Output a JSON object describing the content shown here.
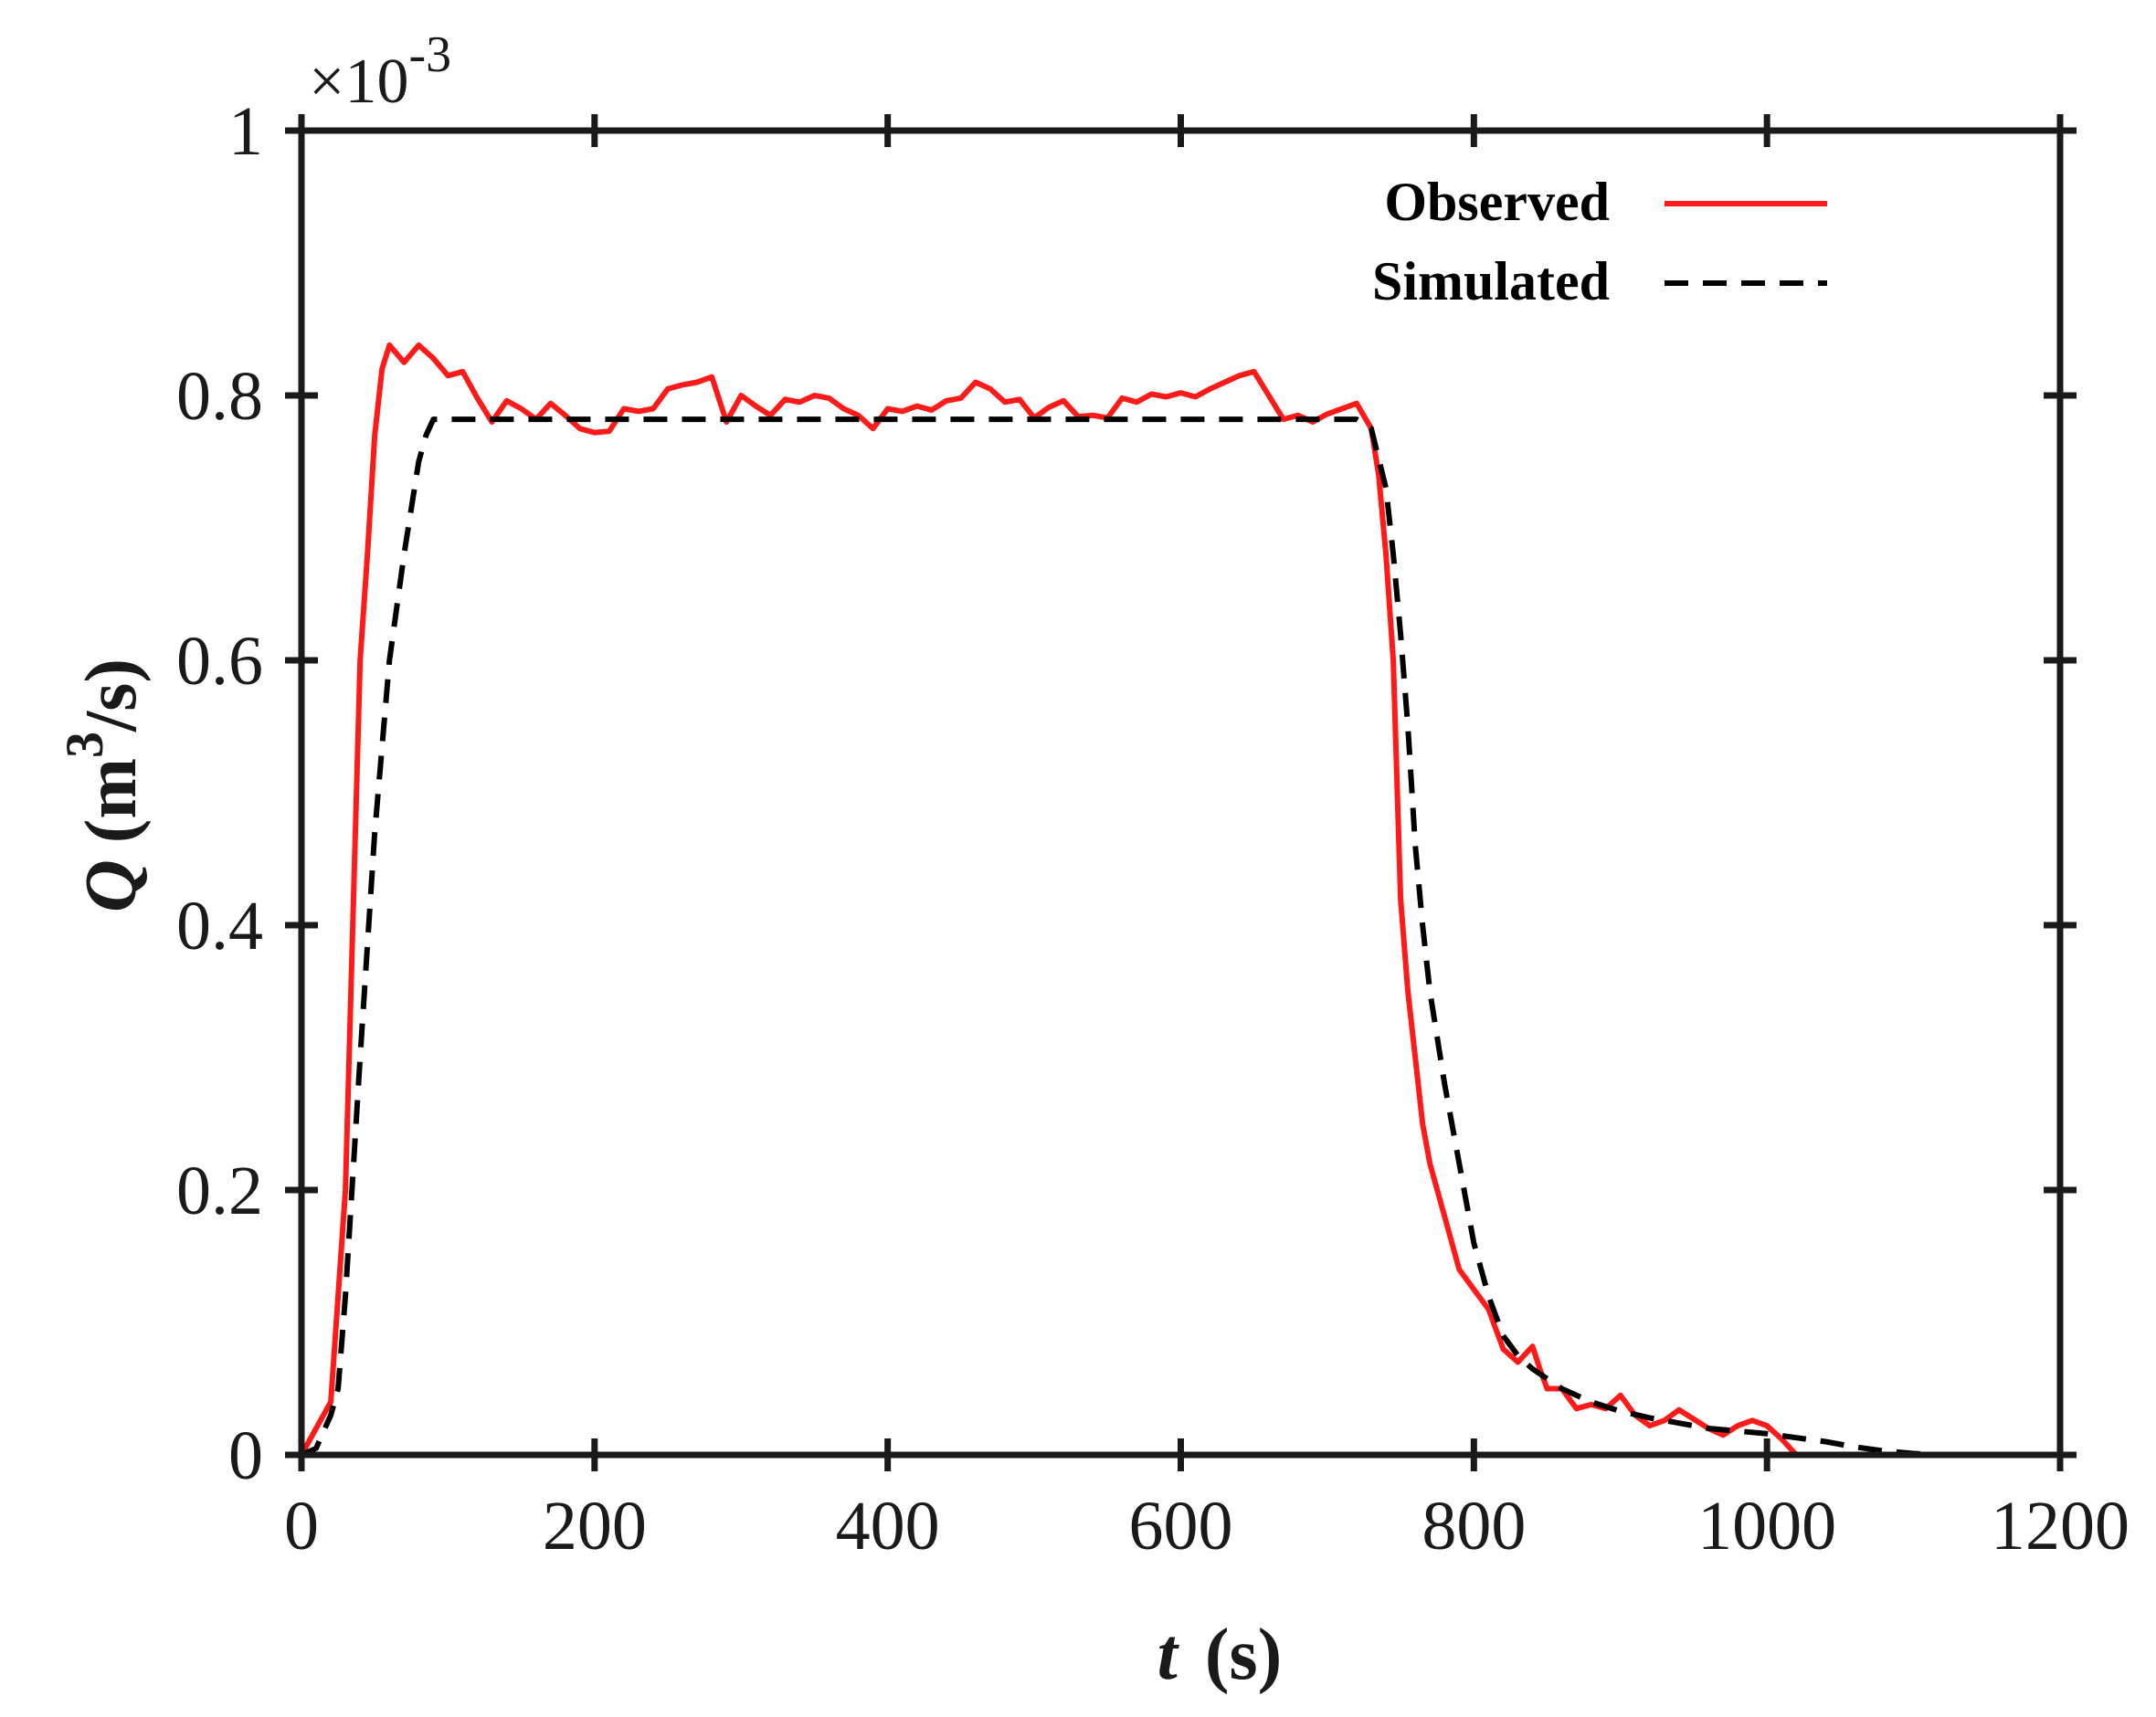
{
  "chart_data": {
    "type": "line",
    "xlabel": {
      "var": "t",
      "unit": "(s)"
    },
    "ylabel": {
      "var": "Q",
      "unit_pre": "(m",
      "unit_sup": "3",
      "unit_post": "/s)"
    },
    "y_multiplier": {
      "prefix": "×10",
      "exponent": "-3"
    },
    "xlim": [
      0,
      1200
    ],
    "ylim": [
      0,
      1
    ],
    "xticks": [
      0,
      200,
      400,
      600,
      800,
      1000,
      1200
    ],
    "xtick_labels": [
      "0",
      "200",
      "400",
      "600",
      "800",
      "1000",
      "1200"
    ],
    "yticks": [
      0,
      0.2,
      0.4,
      0.6,
      0.8,
      1
    ],
    "ytick_labels": [
      "0",
      "0.2",
      "0.4",
      "0.6",
      "0.8",
      "1"
    ],
    "grid": false,
    "legend_position": "top-right",
    "series": [
      {
        "name": "Observed",
        "color": "#ff1a1a",
        "style": "solid",
        "x": [
          0,
          10,
          20,
          30,
          40,
          45,
          50,
          55,
          60,
          70,
          80,
          90,
          100,
          110,
          120,
          130,
          140,
          150,
          160,
          170,
          180,
          190,
          200,
          210,
          220,
          230,
          240,
          250,
          260,
          270,
          280,
          290,
          300,
          310,
          320,
          330,
          340,
          350,
          360,
          370,
          380,
          390,
          400,
          410,
          420,
          430,
          440,
          450,
          460,
          470,
          480,
          490,
          500,
          510,
          520,
          530,
          540,
          550,
          560,
          570,
          580,
          590,
          600,
          610,
          620,
          630,
          640,
          650,
          660,
          670,
          680,
          690,
          700,
          710,
          720,
          730,
          735,
          740,
          745,
          750,
          755,
          760,
          765,
          770,
          780,
          790,
          800,
          810,
          820,
          830,
          840,
          845,
          850,
          860,
          870,
          880,
          890,
          900,
          910,
          920,
          930,
          940,
          950,
          960,
          970,
          980,
          990,
          1000,
          1010,
          1020
        ],
        "values": [
          0,
          0.02,
          0.04,
          0.2,
          0.6,
          0.68,
          0.77,
          0.82,
          0.838,
          0.825,
          0.838,
          0.828,
          0.815,
          0.818,
          0.798,
          0.78,
          0.796,
          0.79,
          0.782,
          0.794,
          0.785,
          0.775,
          0.772,
          0.773,
          0.79,
          0.788,
          0.79,
          0.805,
          0.808,
          0.81,
          0.814,
          0.78,
          0.8,
          0.792,
          0.785,
          0.797,
          0.795,
          0.8,
          0.798,
          0.79,
          0.785,
          0.775,
          0.79,
          0.788,
          0.792,
          0.789,
          0.796,
          0.798,
          0.81,
          0.805,
          0.795,
          0.797,
          0.783,
          0.791,
          0.796,
          0.784,
          0.785,
          0.783,
          0.798,
          0.795,
          0.801,
          0.799,
          0.802,
          0.799,
          0.805,
          0.81,
          0.815,
          0.818,
          0.8,
          0.782,
          0.785,
          0.78,
          0.786,
          0.79,
          0.794,
          0.775,
          0.74,
          0.68,
          0.6,
          0.42,
          0.35,
          0.3,
          0.25,
          0.22,
          0.18,
          0.14,
          0.125,
          0.11,
          0.08,
          0.07,
          0.082,
          0.065,
          0.05,
          0.05,
          0.035,
          0.038,
          0.035,
          0.045,
          0.03,
          0.022,
          0.026,
          0.034,
          0.027,
          0.02,
          0.015,
          0.022,
          0.026,
          0.022,
          0.012,
          0.0
        ]
      },
      {
        "name": "Simulated",
        "color": "#000000",
        "style": "dashed",
        "x": [
          0,
          10,
          20,
          25,
          30,
          40,
          50,
          60,
          70,
          80,
          85,
          90,
          100,
          200,
          300,
          400,
          500,
          600,
          700,
          720,
          730,
          740,
          745,
          750,
          755,
          760,
          765,
          770,
          780,
          790,
          800,
          810,
          820,
          830,
          840,
          860,
          880,
          900,
          920,
          940,
          960,
          980,
          1000,
          1020,
          1040,
          1060,
          1080,
          1100,
          1120,
          1150,
          1180
        ],
        "values": [
          0,
          0.005,
          0.03,
          0.05,
          0.12,
          0.3,
          0.47,
          0.6,
          0.68,
          0.75,
          0.77,
          0.782,
          0.782,
          0.782,
          0.782,
          0.782,
          0.782,
          0.782,
          0.782,
          0.782,
          0.775,
          0.73,
          0.68,
          0.62,
          0.55,
          0.46,
          0.4,
          0.35,
          0.28,
          0.22,
          0.16,
          0.12,
          0.09,
          0.075,
          0.065,
          0.05,
          0.04,
          0.033,
          0.028,
          0.024,
          0.02,
          0.018,
          0.016,
          0.013,
          0.01,
          0.006,
          0.003,
          0.001,
          0.0,
          0.0,
          0.0
        ]
      }
    ]
  }
}
